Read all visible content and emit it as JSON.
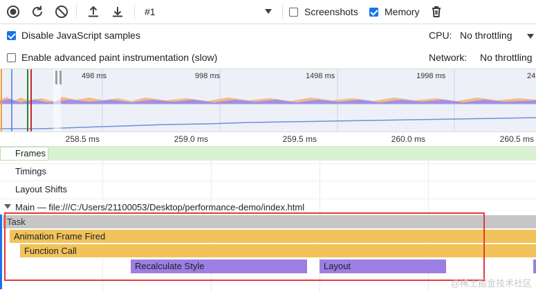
{
  "toolbar": {
    "profile_select": "#1",
    "screenshots_label": "Screenshots",
    "screenshots_checked": false,
    "memory_label": "Memory",
    "memory_checked": true
  },
  "settings": {
    "disable_js_samples_label": "Disable JavaScript samples",
    "disable_js_samples_checked": true,
    "advanced_paint_label": "Enable advanced paint instrumentation (slow)",
    "advanced_paint_checked": false,
    "cpu_label": "CPU:",
    "cpu_value": "No throttling",
    "network_label": "Network:",
    "network_value": "No throttling"
  },
  "overview": {
    "ticks": [
      "498 ms",
      "998 ms",
      "1498 ms",
      "1998 ms",
      "24"
    ]
  },
  "ruler": {
    "ticks": [
      "258.5 ms",
      "259.0 ms",
      "259.5 ms",
      "260.0 ms",
      "260.5 ms"
    ]
  },
  "tracks": {
    "frames": "Frames",
    "timings": "Timings",
    "layout_shifts": "Layout Shifts",
    "main": "Main — file:///C:/Users/21100053/Desktop/performance-demo/index.html"
  },
  "flame": {
    "task": "Task",
    "animation_frame": "Animation Frame Fired",
    "function_call": "Function Call",
    "recalculate_style": "Recalculate Style",
    "layout": "Layout"
  },
  "watermark": "@稀土掘金技术社区",
  "colors": {
    "task": "#c6c6c6",
    "scripting": "#f1c35a",
    "rendering": "#9d7ee3",
    "frames": "#d9f2d2",
    "highlight": "#e53935",
    "accent": "#1a73e8"
  }
}
